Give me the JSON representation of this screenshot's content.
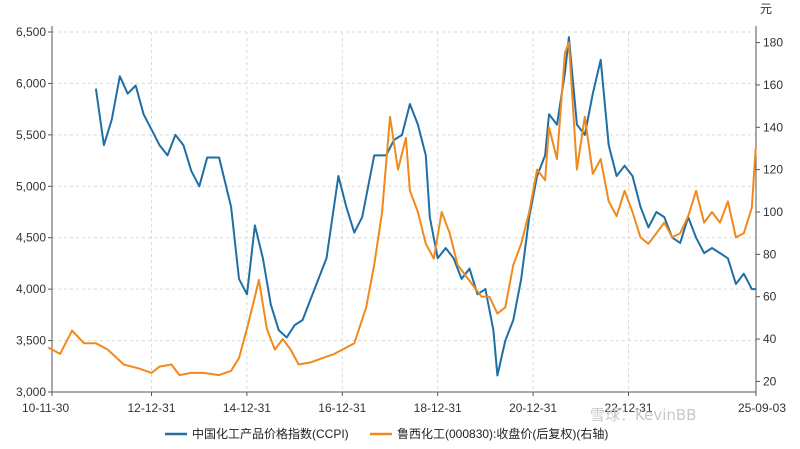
{
  "chart_data": {
    "type": "line",
    "unit_right": "元",
    "x_ticks": [
      "10-11-30",
      "12-12-31",
      "14-12-31",
      "16-12-31",
      "18-12-31",
      "20-12-31",
      "22-12-31",
      "25-09-03"
    ],
    "y_left": {
      "ticks": [
        "3,000",
        "3,500",
        "4,000",
        "4,500",
        "5,000",
        "5,500",
        "6,000",
        "6,500"
      ],
      "range": [
        3000,
        6500
      ]
    },
    "y_right": {
      "ticks": [
        "20",
        "40",
        "60",
        "80",
        "100",
        "120",
        "140",
        "160",
        "180"
      ],
      "range": [
        15,
        185
      ]
    },
    "grid": true,
    "legend_position": "bottom",
    "series": [
      {
        "name": "中国化工产品价格指数(CCPI)",
        "axis": "left",
        "color": "#1f6fa5",
        "points": [
          [
            "2011-11",
            5950
          ],
          [
            "2012-01",
            5400
          ],
          [
            "2012-03",
            5650
          ],
          [
            "2012-05",
            6070
          ],
          [
            "2012-07",
            5900
          ],
          [
            "2012-09",
            5980
          ],
          [
            "2012-11",
            5700
          ],
          [
            "2013-01",
            5550
          ],
          [
            "2013-03",
            5400
          ],
          [
            "2013-05",
            5300
          ],
          [
            "2013-07",
            5500
          ],
          [
            "2013-09",
            5400
          ],
          [
            "2013-11",
            5150
          ],
          [
            "2014-01",
            5000
          ],
          [
            "2014-03",
            5280
          ],
          [
            "2014-06",
            5280
          ],
          [
            "2014-09",
            4800
          ],
          [
            "2014-11",
            4100
          ],
          [
            "2015-01",
            3950
          ],
          [
            "2015-03",
            4620
          ],
          [
            "2015-05",
            4300
          ],
          [
            "2015-07",
            3850
          ],
          [
            "2015-09",
            3600
          ],
          [
            "2015-11",
            3530
          ],
          [
            "2016-01",
            3650
          ],
          [
            "2016-03",
            3700
          ],
          [
            "2016-06",
            4000
          ],
          [
            "2016-09",
            4300
          ],
          [
            "2016-12",
            5100
          ],
          [
            "2017-02",
            4800
          ],
          [
            "2017-04",
            4550
          ],
          [
            "2017-06",
            4700
          ],
          [
            "2017-09",
            5300
          ],
          [
            "2017-12",
            5300
          ],
          [
            "2018-02",
            5450
          ],
          [
            "2018-04",
            5500
          ],
          [
            "2018-06",
            5800
          ],
          [
            "2018-08",
            5600
          ],
          [
            "2018-10",
            5300
          ],
          [
            "2018-11",
            4700
          ],
          [
            "2019-01",
            4300
          ],
          [
            "2019-03",
            4400
          ],
          [
            "2019-05",
            4300
          ],
          [
            "2019-07",
            4100
          ],
          [
            "2019-09",
            4200
          ],
          [
            "2019-11",
            3950
          ],
          [
            "2020-01",
            4000
          ],
          [
            "2020-03",
            3600
          ],
          [
            "2020-04",
            3160
          ],
          [
            "2020-06",
            3500
          ],
          [
            "2020-08",
            3700
          ],
          [
            "2020-10",
            4100
          ],
          [
            "2020-12",
            4700
          ],
          [
            "2021-02",
            5100
          ],
          [
            "2021-04",
            5300
          ],
          [
            "2021-05",
            5700
          ],
          [
            "2021-07",
            5600
          ],
          [
            "2021-09",
            6100
          ],
          [
            "2021-10",
            6450
          ],
          [
            "2021-12",
            5600
          ],
          [
            "2022-02",
            5500
          ],
          [
            "2022-04",
            5900
          ],
          [
            "2022-06",
            6230
          ],
          [
            "2022-08",
            5400
          ],
          [
            "2022-10",
            5100
          ],
          [
            "2022-12",
            5200
          ],
          [
            "2023-02",
            5100
          ],
          [
            "2023-04",
            4800
          ],
          [
            "2023-06",
            4600
          ],
          [
            "2023-08",
            4750
          ],
          [
            "2023-10",
            4700
          ],
          [
            "2023-12",
            4500
          ],
          [
            "2024-02",
            4450
          ],
          [
            "2024-04",
            4700
          ],
          [
            "2024-06",
            4500
          ],
          [
            "2024-08",
            4350
          ],
          [
            "2024-10",
            4400
          ],
          [
            "2024-12",
            4350
          ],
          [
            "2025-02",
            4300
          ],
          [
            "2025-04",
            4050
          ],
          [
            "2025-06",
            4150
          ],
          [
            "2025-08",
            4000
          ],
          [
            "2025-09",
            4000
          ]
        ]
      },
      {
        "name": "鲁西化工(000830):收盘价(后复权)(右轴)",
        "axis": "right",
        "color": "#f08a1c",
        "points": [
          [
            "2010-11",
            36
          ],
          [
            "2011-02",
            33
          ],
          [
            "2011-05",
            44
          ],
          [
            "2011-08",
            38
          ],
          [
            "2011-11",
            38
          ],
          [
            "2012-02",
            35
          ],
          [
            "2012-06",
            28
          ],
          [
            "2012-10",
            26
          ],
          [
            "2013-01",
            24
          ],
          [
            "2013-03",
            27
          ],
          [
            "2013-06",
            28
          ],
          [
            "2013-08",
            23
          ],
          [
            "2013-11",
            24
          ],
          [
            "2014-02",
            24
          ],
          [
            "2014-06",
            23
          ],
          [
            "2014-09",
            25
          ],
          [
            "2014-11",
            31
          ],
          [
            "2015-01",
            45
          ],
          [
            "2015-03",
            60
          ],
          [
            "2015-04",
            68
          ],
          [
            "2015-06",
            45
          ],
          [
            "2015-08",
            35
          ],
          [
            "2015-10",
            40
          ],
          [
            "2015-12",
            35
          ],
          [
            "2016-02",
            28
          ],
          [
            "2016-05",
            29
          ],
          [
            "2016-08",
            31
          ],
          [
            "2016-11",
            33
          ],
          [
            "2017-01",
            35
          ],
          [
            "2017-04",
            38
          ],
          [
            "2017-07",
            55
          ],
          [
            "2017-09",
            75
          ],
          [
            "2017-11",
            100
          ],
          [
            "2018-01",
            145
          ],
          [
            "2018-03",
            120
          ],
          [
            "2018-05",
            135
          ],
          [
            "2018-06",
            110
          ],
          [
            "2018-08",
            100
          ],
          [
            "2018-10",
            85
          ],
          [
            "2018-12",
            78
          ],
          [
            "2019-02",
            100
          ],
          [
            "2019-04",
            90
          ],
          [
            "2019-06",
            75
          ],
          [
            "2019-08",
            70
          ],
          [
            "2019-10",
            65
          ],
          [
            "2019-12",
            60
          ],
          [
            "2020-02",
            60
          ],
          [
            "2020-04",
            52
          ],
          [
            "2020-06",
            55
          ],
          [
            "2020-08",
            75
          ],
          [
            "2020-10",
            85
          ],
          [
            "2020-12",
            100
          ],
          [
            "2021-02",
            120
          ],
          [
            "2021-04",
            115
          ],
          [
            "2021-05",
            140
          ],
          [
            "2021-07",
            125
          ],
          [
            "2021-09",
            175
          ],
          [
            "2021-10",
            180
          ],
          [
            "2021-12",
            120
          ],
          [
            "2022-02",
            145
          ],
          [
            "2022-04",
            118
          ],
          [
            "2022-06",
            125
          ],
          [
            "2022-08",
            105
          ],
          [
            "2022-10",
            98
          ],
          [
            "2022-12",
            110
          ],
          [
            "2023-02",
            100
          ],
          [
            "2023-04",
            88
          ],
          [
            "2023-06",
            85
          ],
          [
            "2023-08",
            90
          ],
          [
            "2023-10",
            95
          ],
          [
            "2023-12",
            88
          ],
          [
            "2024-02",
            90
          ],
          [
            "2024-04",
            98
          ],
          [
            "2024-06",
            110
          ],
          [
            "2024-08",
            95
          ],
          [
            "2024-10",
            100
          ],
          [
            "2024-12",
            95
          ],
          [
            "2025-02",
            105
          ],
          [
            "2025-04",
            88
          ],
          [
            "2025-06",
            90
          ],
          [
            "2025-08",
            102
          ],
          [
            "2025-09",
            130
          ]
        ]
      }
    ]
  },
  "watermark": "雪球：KevinBB"
}
